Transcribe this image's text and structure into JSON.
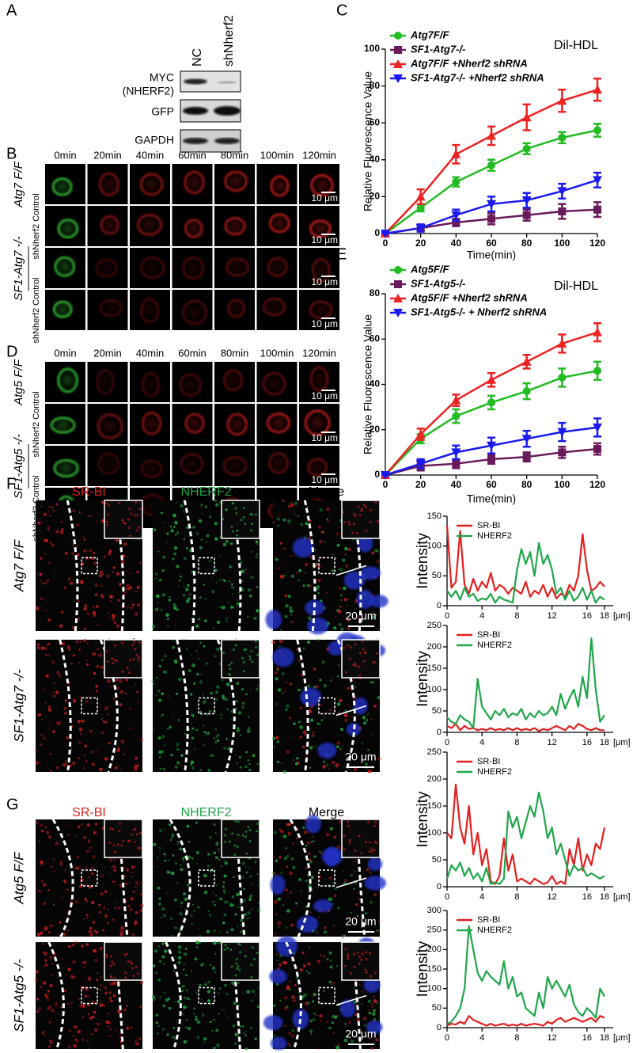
{
  "panels": {
    "A": {
      "label": "A",
      "lanes": [
        "NC",
        "shNherf2"
      ],
      "rows": [
        [
          "MYC",
          "(NHERF2)"
        ],
        [
          "GFP"
        ],
        [
          "GAPDH"
        ]
      ]
    },
    "B": {
      "label": "B",
      "times": [
        "0min",
        "20min",
        "40min",
        "60min",
        "80min",
        "100min",
        "120min"
      ],
      "row_labels": [
        "Atg7 F/F",
        "shNherf2 Control",
        "SF1-Atg7 -/-",
        "shNherf2 Control"
      ],
      "scale": "10 μm"
    },
    "D": {
      "label": "D",
      "times": [
        "0min",
        "20min",
        "40min",
        "60min",
        "80min",
        "100min",
        "120min"
      ],
      "row_labels": [
        "Atg5 F/F",
        "shNherf2 Control",
        "SF1-Atg5 -/-",
        "shNherf2 Control"
      ],
      "scale": "10 μm"
    },
    "F": {
      "label": "F",
      "columns": [
        "SR-BI",
        "NHERF2",
        "Merge"
      ],
      "row_labels": [
        "Atg7 F/F",
        "SF1-Atg7 -/-"
      ],
      "scale": "20 μm"
    },
    "G": {
      "label": "G",
      "columns": [
        "SR-BI",
        "NHERF2",
        "Merge"
      ],
      "row_labels": [
        "Atg5 F/F",
        "SF1-Atg5 -/-"
      ],
      "scale": "20 μm"
    }
  },
  "chart_data": [
    {
      "type": "line",
      "label": "C",
      "annotation": "Dil-HDL",
      "xlabel": "Time(min)",
      "ylabel": "Relative Fluorescence Value",
      "x": [
        0,
        20,
        40,
        60,
        80,
        100,
        120
      ],
      "xlim": [
        0,
        120
      ],
      "xticks": [
        0,
        20,
        40,
        60,
        80,
        100,
        120
      ],
      "ylim": [
        0,
        100
      ],
      "yticks": [
        0,
        20,
        40,
        60,
        80,
        100
      ],
      "series": [
        {
          "name": "Atg7F/F",
          "color": "#22bb22",
          "marker": "circle",
          "values": [
            0,
            14,
            28,
            37,
            46,
            52,
            56
          ],
          "errors": [
            0,
            2,
            2.5,
            3,
            3,
            3,
            3.5
          ]
        },
        {
          "name": "SF1-Atg7-/-",
          "color": "#6a1a5a",
          "marker": "square",
          "values": [
            0,
            3,
            6,
            8,
            10,
            12,
            13
          ],
          "errors": [
            0,
            1.5,
            2,
            3,
            3,
            4,
            4
          ]
        },
        {
          "name": "Atg7F/F +Nherf2 shRNA",
          "color": "#ee2222",
          "marker": "triangle-up",
          "values": [
            0,
            20,
            43,
            53,
            63,
            72,
            78
          ],
          "errors": [
            0,
            4,
            5,
            5,
            7,
            6,
            6
          ]
        },
        {
          "name": "SF1-Atg7-/- +Nherf2 shRNA",
          "color": "#1a1aee",
          "marker": "triangle-down",
          "values": [
            0,
            3,
            10,
            16,
            18,
            23,
            29
          ],
          "errors": [
            0,
            2,
            3,
            4,
            4,
            4,
            4
          ]
        }
      ]
    },
    {
      "type": "line",
      "label": "E",
      "annotation": "Dil-HDL",
      "xlabel": "Time(min)",
      "ylabel": "Relative Fluorescence Value",
      "x": [
        0,
        20,
        40,
        60,
        80,
        100,
        120
      ],
      "xlim": [
        0,
        120
      ],
      "xticks": [
        0,
        20,
        40,
        60,
        80,
        100,
        120
      ],
      "ylim": [
        0,
        80
      ],
      "yticks": [
        0,
        20,
        40,
        60,
        80
      ],
      "series": [
        {
          "name": "Atg5F/F",
          "color": "#22bb22",
          "marker": "circle",
          "values": [
            0,
            16,
            26,
            32,
            37,
            43,
            46
          ],
          "errors": [
            0,
            2,
            3,
            3,
            3.5,
            4,
            4
          ]
        },
        {
          "name": "SF1-Atg5-/-",
          "color": "#6a1a5a",
          "marker": "square",
          "values": [
            0,
            4,
            5,
            7,
            8,
            10,
            11.5
          ],
          "errors": [
            0,
            2,
            2,
            2,
            2,
            2.5,
            2.5
          ]
        },
        {
          "name": "Atg5F/F +Nherf2 shRNA",
          "color": "#ee2222",
          "marker": "triangle-up",
          "values": [
            0,
            18,
            33,
            42,
            50,
            58,
            63
          ],
          "errors": [
            0,
            2.5,
            2.5,
            3,
            3,
            4,
            4
          ]
        },
        {
          "name": "SF1-Atg5-/- + Nherf2 shRNA",
          "color": "#1a1aee",
          "marker": "triangle-down",
          "values": [
            0,
            5,
            10,
            13,
            16,
            19,
            21
          ],
          "errors": [
            0,
            2,
            3,
            3.5,
            3.5,
            4,
            4
          ]
        }
      ]
    },
    {
      "type": "line",
      "ylabel": "Intensity",
      "xunit": "[μm]",
      "x": [
        0,
        0.5,
        1,
        1.5,
        2,
        2.5,
        3,
        3.5,
        4,
        4.5,
        5,
        5.5,
        6,
        6.5,
        7,
        7.5,
        8,
        8.5,
        9,
        9.5,
        10,
        10.5,
        11,
        11.5,
        12,
        12.5,
        13,
        13.5,
        14,
        14.5,
        15,
        15.5,
        16,
        16.5,
        17,
        17.5,
        18
      ],
      "xlim": [
        0,
        19
      ],
      "xticks": [
        0,
        4,
        8,
        12,
        16,
        18
      ],
      "ylim": [
        0,
        150
      ],
      "yticks": [
        0,
        50,
        100,
        150
      ],
      "series": [
        {
          "name": "SR-BI",
          "color": "#e41f1f",
          "values": [
            135,
            30,
            40,
            125,
            35,
            20,
            45,
            25,
            40,
            30,
            55,
            25,
            35,
            30,
            20,
            30,
            25,
            20,
            40,
            15,
            25,
            20,
            35,
            15,
            30,
            12,
            20,
            15,
            35,
            25,
            50,
            120,
            60,
            25,
            30,
            40,
            32
          ]
        },
        {
          "name": "NHERF2",
          "color": "#1fa64a",
          "values": [
            25,
            15,
            25,
            10,
            30,
            15,
            20,
            8,
            12,
            10,
            20,
            5,
            15,
            10,
            8,
            5,
            60,
            95,
            70,
            90,
            50,
            105,
            70,
            85,
            60,
            20,
            30,
            10,
            25,
            8,
            15,
            30,
            10,
            25,
            5,
            15,
            10
          ]
        }
      ]
    },
    {
      "type": "line",
      "ylabel": "Intensity",
      "xunit": "[μm]",
      "x": [
        0,
        0.5,
        1,
        1.5,
        2,
        2.5,
        3,
        3.5,
        4,
        4.5,
        5,
        5.5,
        6,
        6.5,
        7,
        7.5,
        8,
        8.5,
        9,
        9.5,
        10,
        10.5,
        11,
        11.5,
        12,
        12.5,
        13,
        13.5,
        14,
        14.5,
        15,
        15.5,
        16,
        16.5,
        17,
        17.5,
        18
      ],
      "xlim": [
        0,
        19
      ],
      "xticks": [
        0,
        4,
        8,
        12,
        16,
        18
      ],
      "ylim": [
        0,
        250
      ],
      "yticks": [
        0,
        50,
        100,
        150,
        200,
        250
      ],
      "series": [
        {
          "name": "SR-BI",
          "color": "#e41f1f",
          "values": [
            15,
            10,
            20,
            5,
            15,
            8,
            10,
            5,
            8,
            5,
            10,
            5,
            8,
            5,
            10,
            5,
            10,
            5,
            8,
            5,
            10,
            3,
            8,
            5,
            10,
            15,
            10,
            5,
            15,
            8,
            20,
            15,
            8,
            5,
            10,
            5,
            5
          ]
        },
        {
          "name": "NHERF2",
          "color": "#1fa64a",
          "values": [
            35,
            25,
            20,
            40,
            30,
            25,
            10,
            125,
            60,
            45,
            30,
            50,
            40,
            55,
            35,
            45,
            40,
            55,
            30,
            45,
            35,
            50,
            40,
            45,
            60,
            40,
            90,
            55,
            80,
            100,
            60,
            130,
            80,
            220,
            100,
            25,
            40
          ]
        }
      ]
    },
    {
      "type": "line",
      "ylabel": "Intensity",
      "xunit": "[μm]",
      "x": [
        0,
        0.5,
        1,
        1.5,
        2,
        2.5,
        3,
        3.5,
        4,
        4.5,
        5,
        5.5,
        6,
        6.5,
        7,
        7.5,
        8,
        8.5,
        9,
        9.5,
        10,
        10.5,
        11,
        11.5,
        12,
        12.5,
        13,
        13.5,
        14,
        14.5,
        15,
        15.5,
        16,
        16.5,
        17,
        17.5,
        18
      ],
      "xlim": [
        0,
        19
      ],
      "xticks": [
        0,
        4,
        8,
        12,
        16,
        18
      ],
      "ylim": [
        0,
        250
      ],
      "yticks": [
        0,
        50,
        100,
        150,
        200,
        250
      ],
      "series": [
        {
          "name": "SR-BI",
          "color": "#e41f1f",
          "values": [
            100,
            90,
            190,
            110,
            80,
            150,
            60,
            100,
            40,
            70,
            10,
            5,
            20,
            90,
            30,
            60,
            10,
            15,
            10,
            5,
            15,
            10,
            5,
            8,
            20,
            5,
            10,
            5,
            70,
            40,
            90,
            30,
            60,
            40,
            80,
            70,
            110
          ]
        },
        {
          "name": "NHERF2",
          "color": "#1fa64a",
          "values": [
            15,
            40,
            30,
            45,
            20,
            35,
            15,
            25,
            10,
            35,
            5,
            8,
            5,
            15,
            140,
            110,
            130,
            90,
            120,
            150,
            130,
            175,
            140,
            90,
            110,
            60,
            80,
            50,
            20,
            40,
            30,
            35,
            20,
            25,
            20,
            15,
            20
          ]
        }
      ]
    },
    {
      "type": "line",
      "ylabel": "Intensity",
      "xunit": "[μm]",
      "x": [
        0,
        0.5,
        1,
        1.5,
        2,
        2.5,
        3,
        3.5,
        4,
        4.5,
        5,
        5.5,
        6,
        6.5,
        7,
        7.5,
        8,
        8.5,
        9,
        9.5,
        10,
        10.5,
        11,
        11.5,
        12,
        12.5,
        13,
        13.5,
        14,
        14.5,
        15,
        15.5,
        16,
        16.5,
        17,
        17.5,
        18
      ],
      "xlim": [
        0,
        19
      ],
      "xticks": [
        0,
        4,
        8,
        12,
        16,
        18
      ],
      "ylim": [
        0,
        300
      ],
      "yticks": [
        0,
        50,
        100,
        150,
        200,
        250,
        300
      ],
      "series": [
        {
          "name": "SR-BI",
          "color": "#e41f1f",
          "values": [
            5,
            10,
            8,
            15,
            10,
            30,
            20,
            15,
            10,
            5,
            10,
            5,
            8,
            10,
            5,
            8,
            5,
            10,
            5,
            8,
            10,
            8,
            5,
            15,
            10,
            20,
            25,
            15,
            20,
            25,
            20,
            15,
            20,
            25,
            15,
            30,
            25
          ]
        },
        {
          "name": "NHERF2",
          "color": "#1fa64a",
          "values": [
            10,
            15,
            30,
            50,
            100,
            260,
            200,
            140,
            120,
            145,
            130,
            120,
            110,
            170,
            100,
            130,
            80,
            90,
            50,
            40,
            30,
            90,
            50,
            130,
            100,
            120,
            100,
            80,
            110,
            60,
            40,
            30,
            50,
            40,
            25,
            100,
            80
          ]
        }
      ]
    }
  ]
}
